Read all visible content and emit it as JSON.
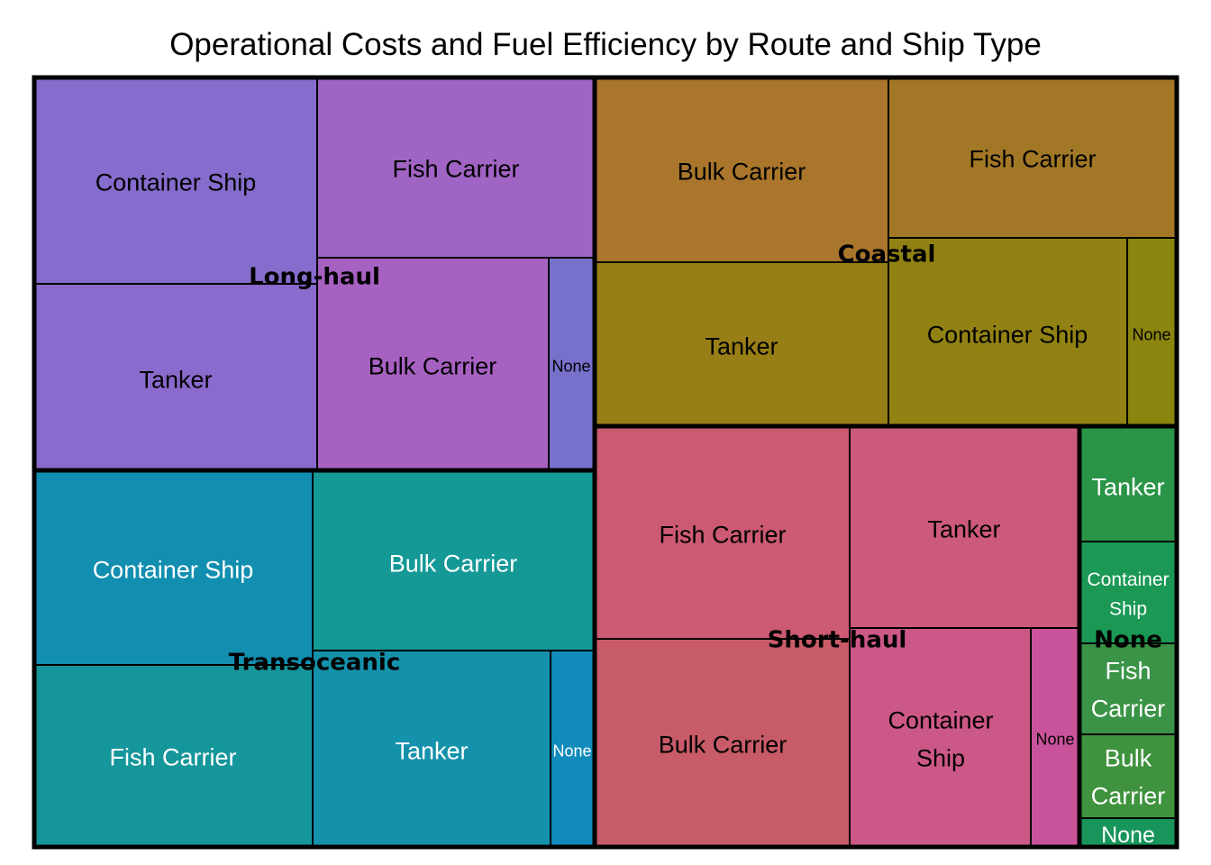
{
  "chart_data": {
    "type": "treemap",
    "title": "Operational Costs and Fuel Efficiency by Route and Ship Type",
    "groups": [
      {
        "name": "Long-haul",
        "color": "#9370db",
        "label_color": "#000000",
        "children": [
          {
            "name": "Container Ship",
            "color": "#866ccc",
            "text_color": "#000000"
          },
          {
            "name": "Fish Carrier",
            "color": "#a064c4",
            "text_color": "#000000"
          },
          {
            "name": "Tanker",
            "color": "#8a6acc",
            "text_color": "#000000"
          },
          {
            "name": "Bulk Carrier",
            "color": "#a661c1",
            "text_color": "#000000"
          },
          {
            "name": "None",
            "color": "#7771cc",
            "text_color": "#000000"
          }
        ]
      },
      {
        "name": "Coastal",
        "color": "#a9822f",
        "label_color": "#000000",
        "children": [
          {
            "name": "Bulk Carrier",
            "color": "#a9762c",
            "text_color": "#000000"
          },
          {
            "name": "Fish Carrier",
            "color": "#a27827",
            "text_color": "#000000"
          },
          {
            "name": "Tanker",
            "color": "#987e16",
            "text_color": "#000000"
          },
          {
            "name": "Container Ship",
            "color": "#918213",
            "text_color": "#000000"
          },
          {
            "name": "None",
            "color": "#8b840f",
            "text_color": "#000000"
          }
        ]
      },
      {
        "name": "Transoceanic",
        "color": "#1aa6c0",
        "label_color": "#000000",
        "children": [
          {
            "name": "Container Ship",
            "color": "#128fb0",
            "text_color": "#ffffff"
          },
          {
            "name": "Bulk Carrier",
            "color": "#149997",
            "text_color": "#ffffff"
          },
          {
            "name": "Fish Carrier",
            "color": "#15969a",
            "text_color": "#ffffff"
          },
          {
            "name": "Tanker",
            "color": "#1592ab",
            "text_color": "#ffffff"
          },
          {
            "name": "None",
            "color": "#108bbb",
            "text_color": "#ffffff"
          }
        ]
      },
      {
        "name": "Short-haul",
        "color": "#e8759a",
        "label_color": "#000000",
        "children": [
          {
            "name": "Fish Carrier",
            "color": "#cc5a72",
            "text_color": "#000000"
          },
          {
            "name": "Tanker",
            "color": "#cc5a7a",
            "text_color": "#000000"
          },
          {
            "name": "Bulk Carrier",
            "color": "#c85b68",
            "text_color": "#000000"
          },
          {
            "name": "Container Ship",
            "color": "#cc5888",
            "text_color": "#000000"
          },
          {
            "name": "None",
            "color": "#c9539a",
            "text_color": "#000000"
          }
        ]
      },
      {
        "name": "None",
        "color": "#2e9a4e",
        "label_color": "#000000",
        "children": [
          {
            "name": "Tanker",
            "color": "#2a9447",
            "text_color": "#ffffff"
          },
          {
            "name": "Container Ship",
            "color": "#1a9854",
            "text_color": "#ffffff"
          },
          {
            "name": "Fish Carrier",
            "color": "#3a9346",
            "text_color": "#ffffff"
          },
          {
            "name": "Bulk Carrier",
            "color": "#3f933e",
            "text_color": "#ffffff"
          },
          {
            "name": "None",
            "color": "#18955a",
            "text_color": "#ffffff"
          }
        ]
      }
    ]
  }
}
